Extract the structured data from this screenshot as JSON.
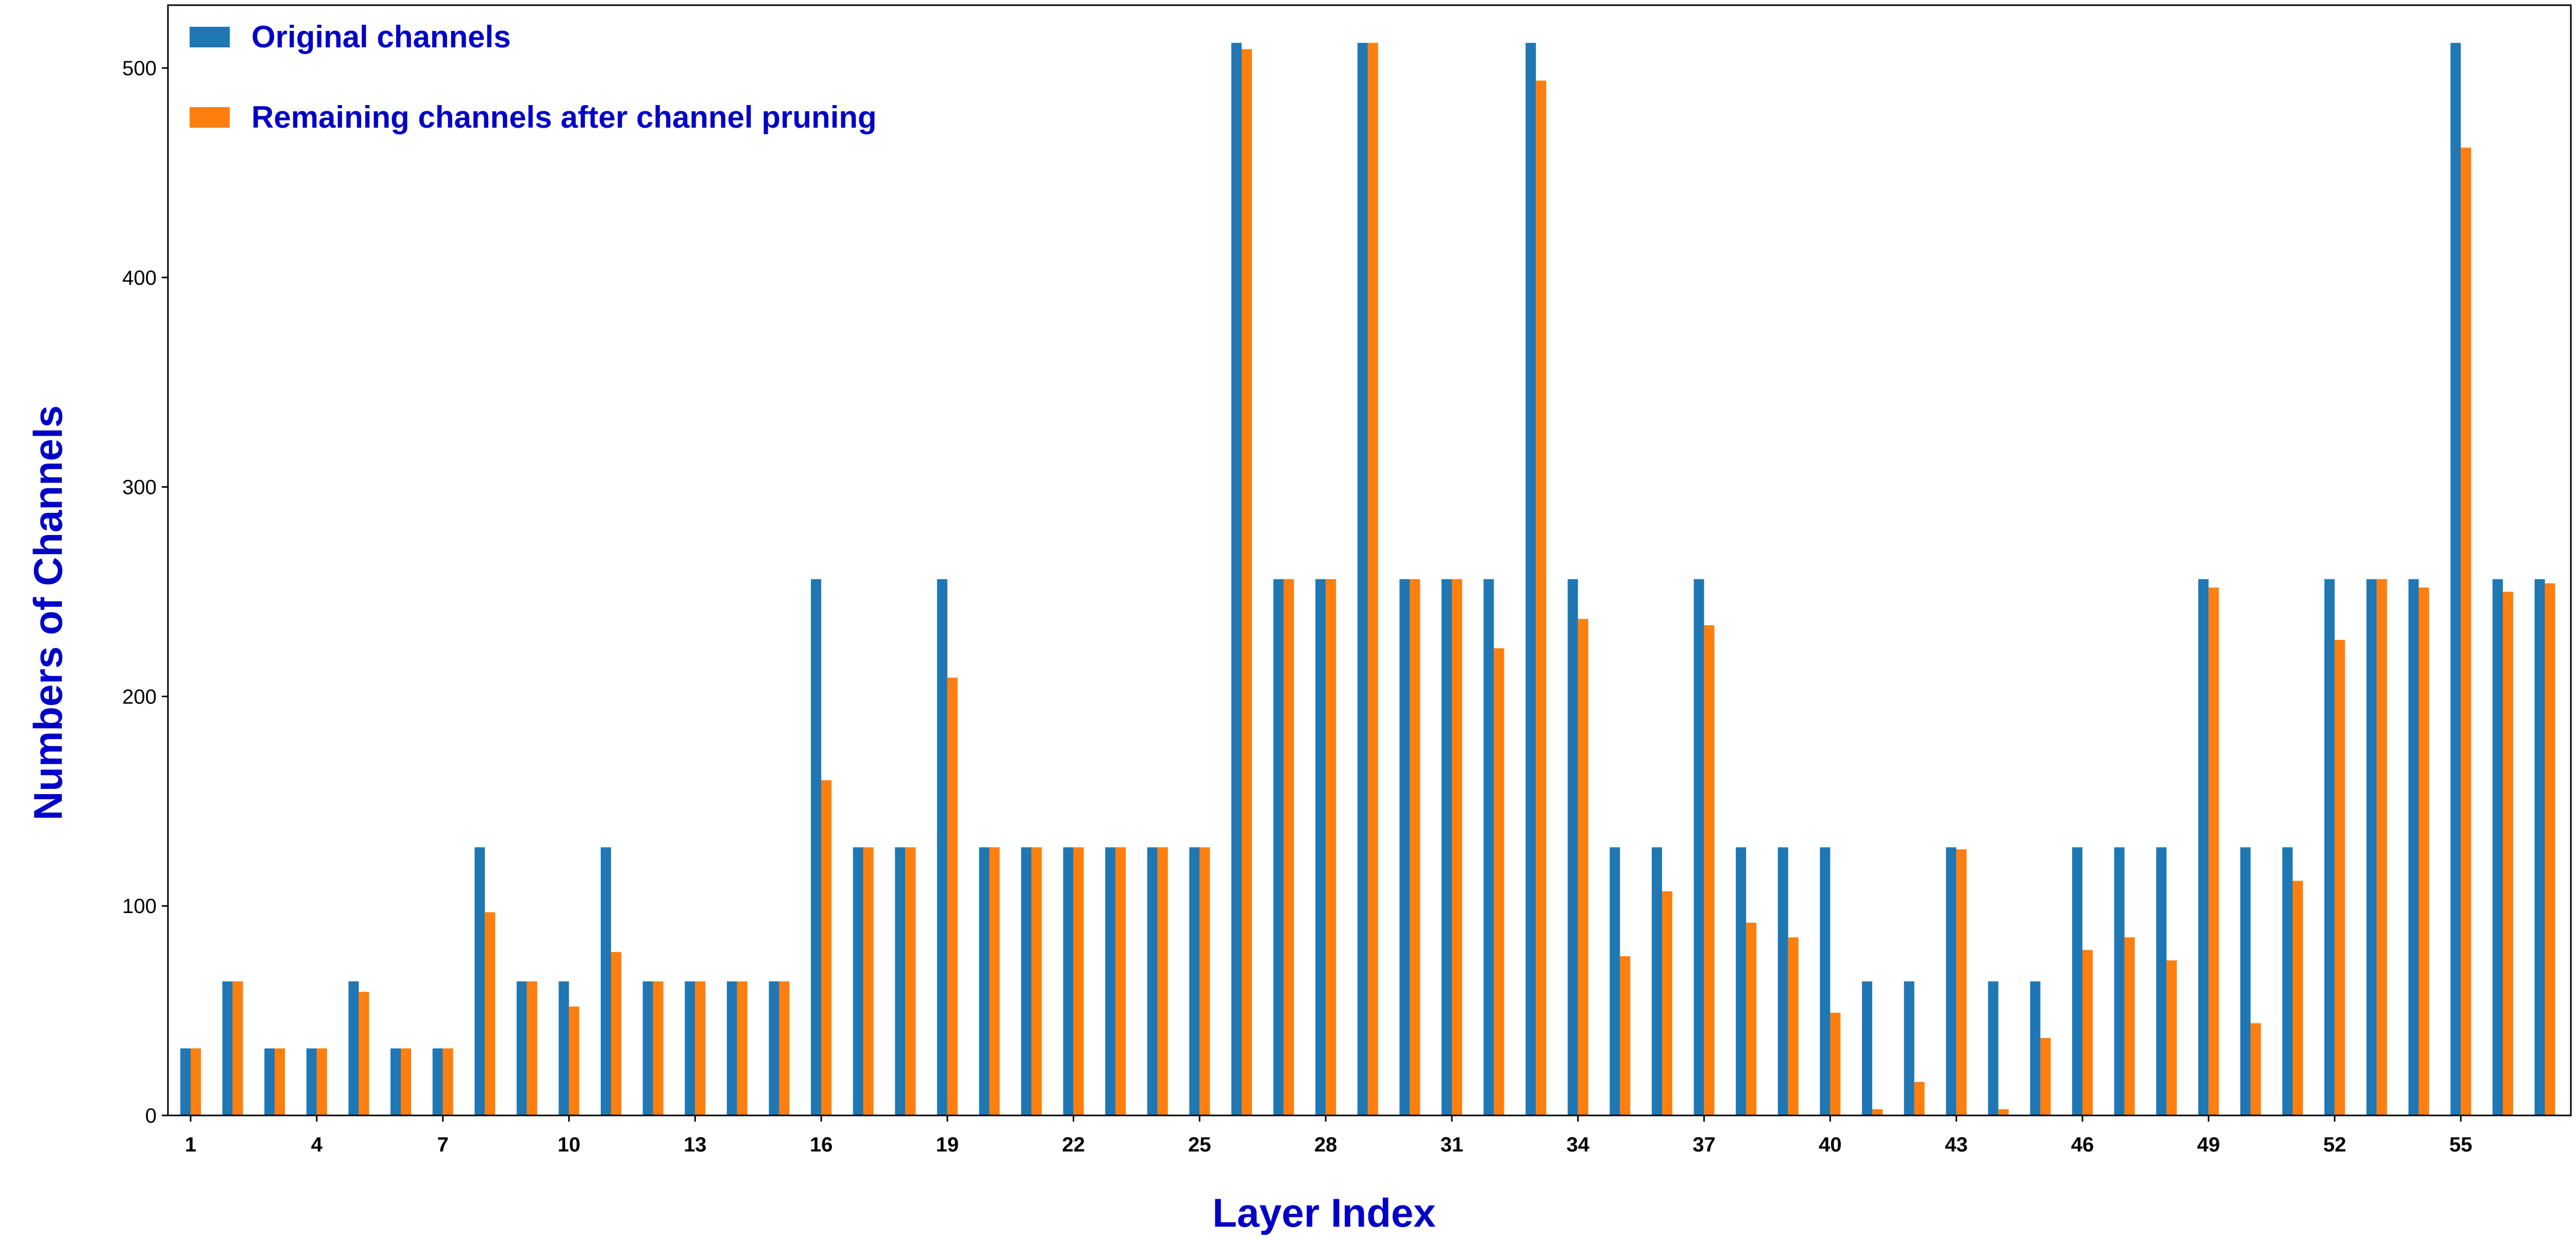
{
  "chart_data": {
    "type": "bar",
    "title": "",
    "xlabel": "Layer Index",
    "ylabel": "Numbers of Channels",
    "ylim": [
      0,
      530
    ],
    "yticks": [
      0,
      100,
      200,
      300,
      400,
      500
    ],
    "xtick_labels": [
      "1",
      "4",
      "7",
      "10",
      "13",
      "16",
      "19",
      "22",
      "25",
      "28",
      "31",
      "34",
      "37",
      "40",
      "43",
      "46",
      "49",
      "52",
      "55"
    ],
    "xtick_every": 3,
    "categories": [
      "1",
      "2",
      "3",
      "4",
      "5",
      "6",
      "7",
      "8",
      "9",
      "10",
      "11",
      "12",
      "13",
      "14",
      "15",
      "16",
      "17",
      "18",
      "19",
      "20",
      "21",
      "22",
      "23",
      "24",
      "25",
      "26",
      "27",
      "28",
      "29",
      "30",
      "31",
      "32",
      "33",
      "34",
      "35",
      "36",
      "37",
      "38",
      "39",
      "40",
      "41",
      "42",
      "43",
      "44",
      "45",
      "46",
      "47",
      "48",
      "49",
      "50",
      "51",
      "52",
      "53",
      "54",
      "55",
      "56",
      "57"
    ],
    "legend_position": "top-left",
    "grid": false,
    "series": [
      {
        "name": "Original channels",
        "color": "#1f77b4",
        "values": [
          32,
          64,
          32,
          32,
          64,
          32,
          32,
          128,
          64,
          64,
          128,
          64,
          64,
          64,
          64,
          256,
          128,
          128,
          256,
          128,
          128,
          128,
          128,
          128,
          128,
          512,
          256,
          256,
          512,
          256,
          256,
          256,
          512,
          256,
          128,
          128,
          256,
          128,
          128,
          128,
          64,
          64,
          128,
          64,
          64,
          128,
          128,
          128,
          256,
          128,
          128,
          256,
          256,
          256,
          512,
          256,
          256
        ]
      },
      {
        "name": "Remaining channels after channel pruning",
        "color": "#ff7f0e",
        "values": [
          32,
          64,
          32,
          32,
          59,
          32,
          32,
          97,
          64,
          52,
          78,
          64,
          64,
          64,
          64,
          160,
          128,
          128,
          209,
          128,
          128,
          128,
          128,
          128,
          128,
          509,
          256,
          256,
          512,
          256,
          256,
          223,
          494,
          237,
          76,
          107,
          234,
          92,
          85,
          49,
          3,
          16,
          127,
          3,
          37,
          79,
          85,
          74,
          252,
          44,
          112,
          227,
          256,
          252,
          462,
          250,
          254
        ]
      }
    ]
  }
}
